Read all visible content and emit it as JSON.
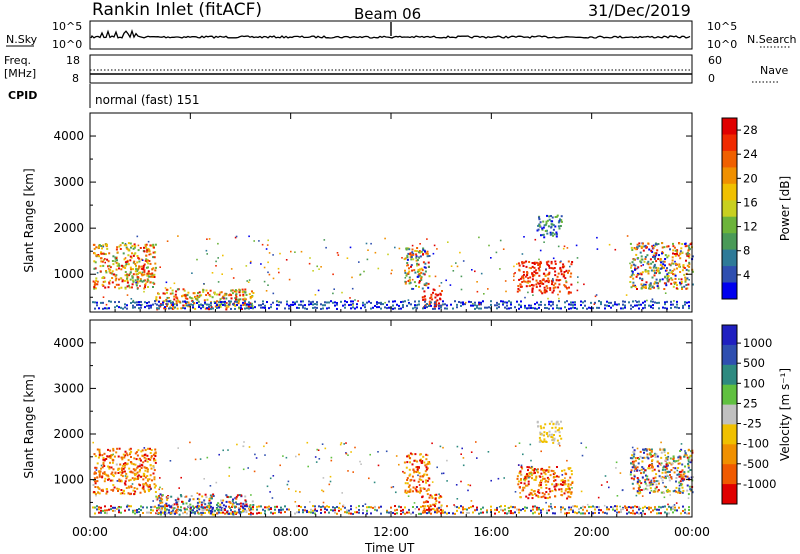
{
  "header": {
    "title": "Rankin Inlet (fitACF)",
    "beam": "Beam 06",
    "date": "31/Dec/2019"
  },
  "noise_panel": {
    "left_label": "N.Sky",
    "right_label": "N.Search",
    "left_ticks": [
      "10^5",
      "10^0"
    ],
    "right_ticks": [
      "10^5",
      "10^0"
    ]
  },
  "freq_panel": {
    "left_label_top": "Freq.",
    "left_label_bottom": "[MHz]",
    "right_label": "Nave",
    "left_ticks": [
      "18",
      "8"
    ],
    "right_ticks": [
      "60",
      "0"
    ],
    "cpid_label": "CPID",
    "cpid_text": "normal (fast) 151"
  },
  "chart_data": [
    {
      "type": "heatmap",
      "name": "power",
      "ylabel": "Slant Range [km]",
      "xlabel": "Time UT",
      "xlim": [
        0,
        24
      ],
      "ylim": [
        180,
        4500
      ],
      "x_ticks": [
        "00:00",
        "04:00",
        "08:00",
        "12:00",
        "16:00",
        "20:00",
        "00:00"
      ],
      "y_ticks": [
        1000,
        2000,
        3000,
        4000
      ],
      "colorbar": {
        "label": "Power [dB]",
        "ticks": [
          "4",
          "8",
          "12",
          "16",
          "20",
          "24",
          "28"
        ],
        "colors": [
          "#0000ee",
          "#2f4fb0",
          "#2e7a98",
          "#4a9a58",
          "#6cb43a",
          "#c8d020",
          "#f0c000",
          "#f09000",
          "#f06000",
          "#f02a00",
          "#e00000"
        ]
      },
      "blobs": [
        {
          "t": [
            0.1,
            2.6
          ],
          "r": [
            700,
            1700
          ],
          "level": "mixed-high"
        },
        {
          "t": [
            2.6,
            6.5
          ],
          "r": [
            250,
            700
          ],
          "level": "mixed-high"
        },
        {
          "t": [
            12.5,
            13.5
          ],
          "r": [
            700,
            1600
          ],
          "level": "mixed"
        },
        {
          "t": [
            13.2,
            14.0
          ],
          "r": [
            300,
            700
          ],
          "level": "high"
        },
        {
          "t": [
            17.0,
            19.2
          ],
          "r": [
            600,
            1300
          ],
          "level": "high"
        },
        {
          "t": [
            17.8,
            18.8
          ],
          "r": [
            1800,
            2300
          ],
          "level": "low"
        },
        {
          "t": [
            21.5,
            24.0
          ],
          "r": [
            700,
            1700
          ],
          "level": "mixed"
        }
      ]
    },
    {
      "type": "heatmap",
      "name": "velocity",
      "ylabel": "Slant Range [km]",
      "xlabel": "Time UT",
      "xlim": [
        0,
        24
      ],
      "ylim": [
        180,
        4500
      ],
      "x_ticks": [
        "00:00",
        "04:00",
        "08:00",
        "12:00",
        "16:00",
        "20:00",
        "00:00"
      ],
      "y_ticks": [
        1000,
        2000,
        3000,
        4000
      ],
      "colorbar": {
        "label": "Velocity [m s⁻¹]",
        "ticks": [
          "1000",
          "500",
          "100",
          "25",
          "-25",
          "-100",
          "-500",
          "-1000"
        ],
        "colors": [
          "#2020c0",
          "#2f4fb0",
          "#2e8a80",
          "#60c040",
          "#c0c0c0",
          "#f0c000",
          "#f09000",
          "#f05a00",
          "#e00000"
        ]
      },
      "blobs": [
        {
          "t": [
            0.1,
            2.6
          ],
          "r": [
            700,
            1700
          ],
          "level": "neg"
        },
        {
          "t": [
            2.6,
            6.5
          ],
          "r": [
            250,
            700
          ],
          "level": "mixed"
        },
        {
          "t": [
            12.5,
            13.5
          ],
          "r": [
            700,
            1600
          ],
          "level": "neg"
        },
        {
          "t": [
            13.2,
            14.0
          ],
          "r": [
            300,
            700
          ],
          "level": "neg"
        },
        {
          "t": [
            17.0,
            19.2
          ],
          "r": [
            600,
            1300
          ],
          "level": "neg"
        },
        {
          "t": [
            17.8,
            18.8
          ],
          "r": [
            1800,
            2300
          ],
          "level": "zero"
        },
        {
          "t": [
            21.5,
            24.0
          ],
          "r": [
            700,
            1700
          ],
          "level": "mixed"
        }
      ]
    }
  ]
}
